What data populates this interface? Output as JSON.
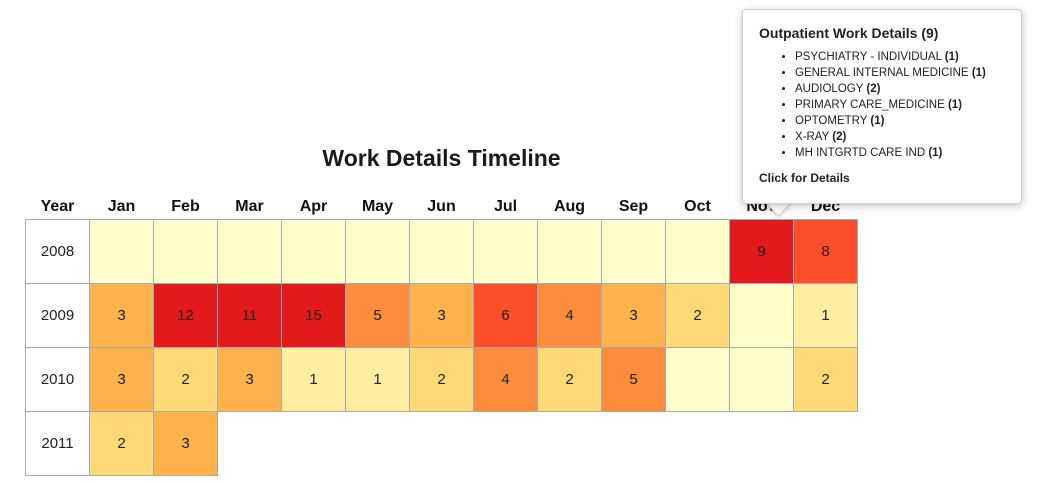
{
  "title": "Work Details Timeline",
  "headers": {
    "year": "Year",
    "months": [
      "Jan",
      "Feb",
      "Mar",
      "Apr",
      "May",
      "Jun",
      "Jul",
      "Aug",
      "Sep",
      "Oct",
      "Nov",
      "Dec"
    ]
  },
  "rows": [
    {
      "year": "2008",
      "cells": [
        "",
        "",
        "",
        "",
        "",
        "",
        "",
        "",
        "",
        "",
        "9",
        "8"
      ]
    },
    {
      "year": "2009",
      "cells": [
        "3",
        "12",
        "11",
        "15",
        "5",
        "3",
        "6",
        "4",
        "3",
        "2",
        "",
        "1"
      ]
    },
    {
      "year": "2010",
      "cells": [
        "3",
        "2",
        "3",
        "1",
        "1",
        "2",
        "4",
        "2",
        "5",
        "",
        "",
        "2"
      ]
    },
    {
      "year": "2011",
      "cells": [
        "2",
        "3"
      ]
    }
  ],
  "colors": {
    "empty": "#ffffcc",
    "c1": "#ffeda0",
    "c2": "#fed976",
    "c3": "#feb24c",
    "c4": "#fd8d3c",
    "c5": "#fd8d3c",
    "c6": "#fc4e2a",
    "c8": "#fc4e2a",
    "c9": "#e31a1c",
    "c11": "#e31a1c",
    "c12": "#e31a1c",
    "c15": "#e31a1c"
  },
  "tooltip": {
    "title": "Outpatient Work Details (9)",
    "items": [
      {
        "label": "PSYCHIATRY - INDIVIDUAL",
        "count": "(1)"
      },
      {
        "label": "GENERAL INTERNAL MEDICINE",
        "count": "(1)"
      },
      {
        "label": "AUDIOLOGY",
        "count": "(2)"
      },
      {
        "label": "PRIMARY CARE_MEDICINE",
        "count": "(1)"
      },
      {
        "label": "OPTOMETRY",
        "count": "(1)"
      },
      {
        "label": "X-RAY",
        "count": "(2)"
      },
      {
        "label": "MH INTGRTD CARE IND",
        "count": "(1)"
      }
    ],
    "link": "Click for Details"
  }
}
